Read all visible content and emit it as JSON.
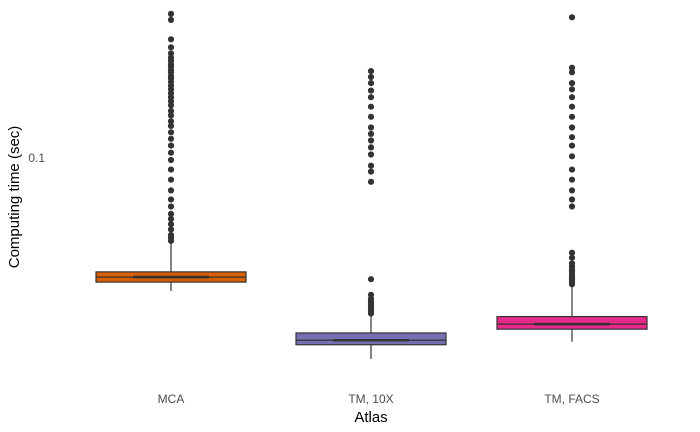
{
  "chart_data": {
    "type": "box",
    "title": "",
    "xlabel": "Atlas",
    "ylabel": "Computing time (sec)",
    "yscale": "log",
    "ylim": [
      0.0305,
      0.225
    ],
    "y_ticks": [
      {
        "value": 0.1,
        "label": "0.1"
      }
    ],
    "grid": false,
    "legend": "none",
    "categories": [
      "MCA",
      "TM, 10X",
      "TM, FACS"
    ],
    "boxes": [
      {
        "name": "MCA",
        "color": "#D95F02",
        "whisker_low": 0.0488,
        "q1": 0.0512,
        "median": 0.0526,
        "q3": 0.0541,
        "whisker_high": 0.0637,
        "outliers": [
          0.218,
          0.211,
          0.19,
          0.182,
          0.176,
          0.172,
          0.169,
          0.166,
          0.164,
          0.161,
          0.159,
          0.156,
          0.154,
          0.151,
          0.148,
          0.145,
          0.142,
          0.139,
          0.136,
          0.133,
          0.129,
          0.126,
          0.122,
          0.119,
          0.115,
          0.111,
          0.107,
          0.103,
          0.099,
          0.094,
          0.089,
          0.084,
          0.08,
          0.077,
          0.074,
          0.072,
          0.07,
          0.068,
          0.066,
          0.065,
          0.064
        ]
      },
      {
        "name": "TM, 10X",
        "color": "#7570B3",
        "whisker_low": 0.0338,
        "q1": 0.0365,
        "median": 0.0374,
        "q3": 0.0389,
        "whisker_high": 0.0428,
        "outliers": [
          0.16,
          0.155,
          0.15,
          0.144,
          0.139,
          0.132,
          0.125,
          0.118,
          0.114,
          0.11,
          0.106,
          0.102,
          0.096,
          0.093,
          0.088,
          0.052,
          0.0478,
          0.0468,
          0.0461,
          0.0455,
          0.045,
          0.0444,
          0.0438,
          0.0432
        ]
      },
      {
        "name": "TM, FACS",
        "color": "#E7298A",
        "whisker_low": 0.0371,
        "q1": 0.0397,
        "median": 0.0408,
        "q3": 0.0425,
        "whisker_high": 0.0502,
        "outliers": [
          0.214,
          0.163,
          0.159,
          0.15,
          0.145,
          0.139,
          0.132,
          0.125,
          0.118,
          0.112,
          0.107,
          0.101,
          0.094,
          0.089,
          0.084,
          0.08,
          0.077,
          0.06,
          0.0584,
          0.0566,
          0.0557,
          0.0548,
          0.0541,
          0.0533,
          0.0526,
          0.0519,
          0.0512,
          0.0506
        ]
      }
    ]
  }
}
